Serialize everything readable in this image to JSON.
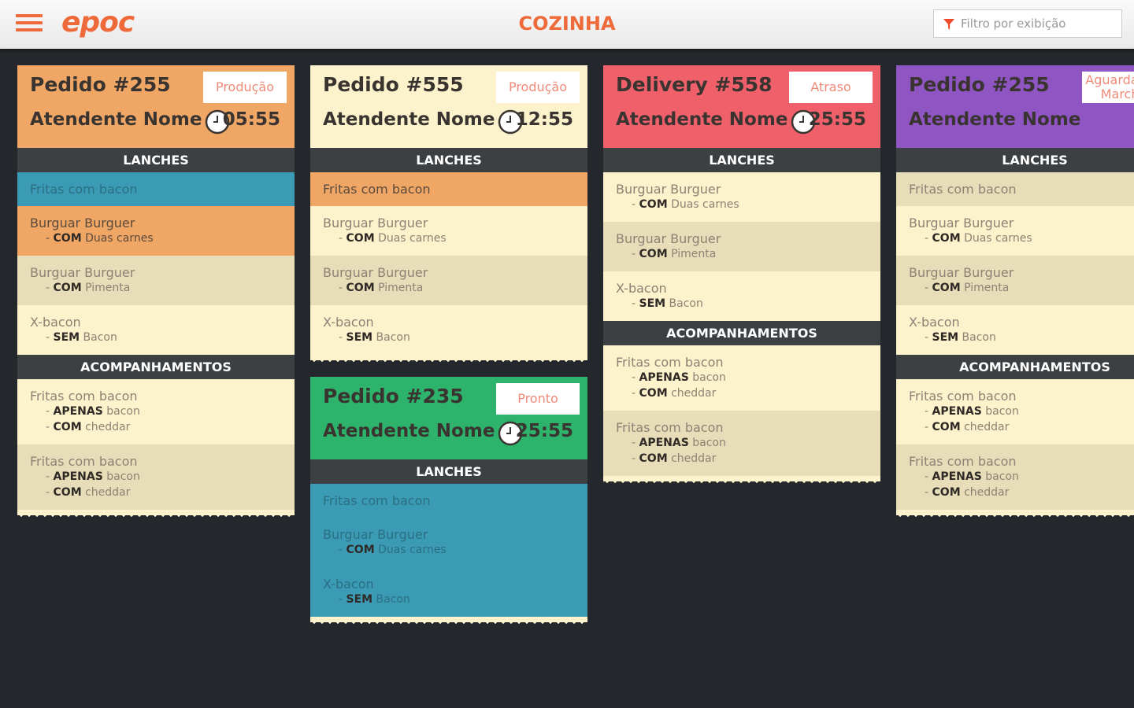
{
  "header": {
    "logo": "epoc",
    "title": "COZINHA",
    "filter_placeholder": "Filtro por exibição"
  },
  "columns": [
    {
      "cards": [
        {
          "title": "Pedido #255",
          "status": "Produção",
          "attendant": "Atendente Nome",
          "time": "05:55",
          "color": "#f0a766",
          "sections": [
            {
              "name": "LANCHES",
              "items": [
                {
                  "name": "Fritas com bacon",
                  "mods": [],
                  "color": "#3b9bb5"
                },
                {
                  "name": "Burguar Burguer",
                  "mods": [
                    {
                      "prefix": "COM",
                      "text": "Duas carnes"
                    }
                  ],
                  "color": "#f0a766"
                },
                {
                  "name": "Burguar Burguer",
                  "mods": [
                    {
                      "prefix": "COM",
                      "text": "Pimenta"
                    }
                  ],
                  "color": "#e7ddb8"
                },
                {
                  "name": "X-bacon",
                  "mods": [
                    {
                      "prefix": "SEM",
                      "text": "Bacon"
                    }
                  ],
                  "color": "#fcf2cc"
                }
              ]
            },
            {
              "name": "ACOMPANHAMENTOS",
              "items": [
                {
                  "name": "Fritas com bacon",
                  "mods": [
                    {
                      "prefix": "APENAS",
                      "text": "bacon"
                    },
                    {
                      "prefix": "COM",
                      "text": "cheddar"
                    }
                  ],
                  "color": "#fcf2cc"
                },
                {
                  "name": "Fritas com bacon",
                  "mods": [
                    {
                      "prefix": "APENAS",
                      "text": "bacon"
                    },
                    {
                      "prefix": "COM",
                      "text": "cheddar"
                    }
                  ],
                  "color": "#e7ddb8"
                }
              ]
            }
          ]
        }
      ]
    },
    {
      "cards": [
        {
          "title": "Pedido #555",
          "status": "Produção",
          "attendant": "Atendente Nome",
          "time": "12:55",
          "color": "#fcf2cc",
          "sections": [
            {
              "name": "LANCHES",
              "items": [
                {
                  "name": "Fritas com bacon",
                  "mods": [],
                  "color": "#f0a766"
                },
                {
                  "name": "Burguar Burguer",
                  "mods": [
                    {
                      "prefix": "COM",
                      "text": "Duas carnes"
                    }
                  ],
                  "color": "#fcf2cc"
                },
                {
                  "name": "Burguar Burguer",
                  "mods": [
                    {
                      "prefix": "COM",
                      "text": "Pimenta"
                    }
                  ],
                  "color": "#e7ddb8"
                },
                {
                  "name": "X-bacon",
                  "mods": [
                    {
                      "prefix": "SEM",
                      "text": "Bacon"
                    }
                  ],
                  "color": "#fcf2cc"
                }
              ]
            }
          ]
        },
        {
          "title": "Pedido #235",
          "status": "Pronto",
          "attendant": "Atendente Nome",
          "time": "25:55",
          "color": "#2db36b",
          "sections": [
            {
              "name": "LANCHES",
              "items": [
                {
                  "name": "Fritas com bacon",
                  "mods": [],
                  "color": "#3b9bb5"
                },
                {
                  "name": "Burguar Burguer",
                  "mods": [
                    {
                      "prefix": "COM",
                      "text": "Duas carnes"
                    }
                  ],
                  "color": "#3b9bb5"
                },
                {
                  "name": "X-bacon",
                  "mods": [
                    {
                      "prefix": "SEM",
                      "text": "Bacon"
                    }
                  ],
                  "color": "#3b9bb5"
                }
              ]
            }
          ]
        }
      ]
    },
    {
      "cards": [
        {
          "title": "Delivery #558",
          "status": "Atraso",
          "attendant": "Atendente Nome",
          "time": "25:55",
          "color": "#f0606a",
          "sections": [
            {
              "name": "LANCHES",
              "items": [
                {
                  "name": "Burguar Burguer",
                  "mods": [
                    {
                      "prefix": "COM",
                      "text": "Duas carnes"
                    }
                  ],
                  "color": "#fcf2cc"
                },
                {
                  "name": "Burguar Burguer",
                  "mods": [
                    {
                      "prefix": "COM",
                      "text": "Pimenta"
                    }
                  ],
                  "color": "#e7ddb8"
                },
                {
                  "name": "X-bacon",
                  "mods": [
                    {
                      "prefix": "SEM",
                      "text": "Bacon"
                    }
                  ],
                  "color": "#fcf2cc"
                }
              ]
            },
            {
              "name": "ACOMPANHAMENTOS",
              "items": [
                {
                  "name": "Fritas com bacon",
                  "mods": [
                    {
                      "prefix": "APENAS",
                      "text": "bacon"
                    },
                    {
                      "prefix": "COM",
                      "text": "cheddar"
                    }
                  ],
                  "color": "#fcf2cc"
                },
                {
                  "name": "Fritas com bacon",
                  "mods": [
                    {
                      "prefix": "APENAS",
                      "text": "bacon"
                    },
                    {
                      "prefix": "COM",
                      "text": "cheddar"
                    }
                  ],
                  "color": "#e7ddb8"
                }
              ]
            }
          ]
        }
      ]
    },
    {
      "cards": [
        {
          "title": "Pedido #255",
          "status": "Aguardando Marcha",
          "attendant": "Atendente Nome",
          "color": "#8e55c3",
          "sections": [
            {
              "name": "LANCHES",
              "items": [
                {
                  "name": "Fritas com bacon",
                  "mods": [],
                  "color": "#e7ddb8"
                },
                {
                  "name": "Burguar Burguer",
                  "mods": [
                    {
                      "prefix": "COM",
                      "text": "Duas carnes"
                    }
                  ],
                  "color": "#fcf2cc"
                },
                {
                  "name": "Burguar Burguer",
                  "mods": [
                    {
                      "prefix": "COM",
                      "text": "Pimenta"
                    }
                  ],
                  "color": "#e7ddb8"
                },
                {
                  "name": "X-bacon",
                  "mods": [
                    {
                      "prefix": "SEM",
                      "text": "Bacon"
                    }
                  ],
                  "color": "#fcf2cc"
                }
              ]
            },
            {
              "name": "ACOMPANHAMENTOS",
              "items": [
                {
                  "name": "Fritas com bacon",
                  "mods": [
                    {
                      "prefix": "APENAS",
                      "text": "bacon"
                    },
                    {
                      "prefix": "COM",
                      "text": "cheddar"
                    }
                  ],
                  "color": "#fcf2cc"
                },
                {
                  "name": "Fritas com bacon",
                  "mods": [
                    {
                      "prefix": "APENAS",
                      "text": "bacon"
                    },
                    {
                      "prefix": "COM",
                      "text": "cheddar"
                    }
                  ],
                  "color": "#e7ddb8"
                }
              ]
            }
          ]
        }
      ]
    }
  ]
}
